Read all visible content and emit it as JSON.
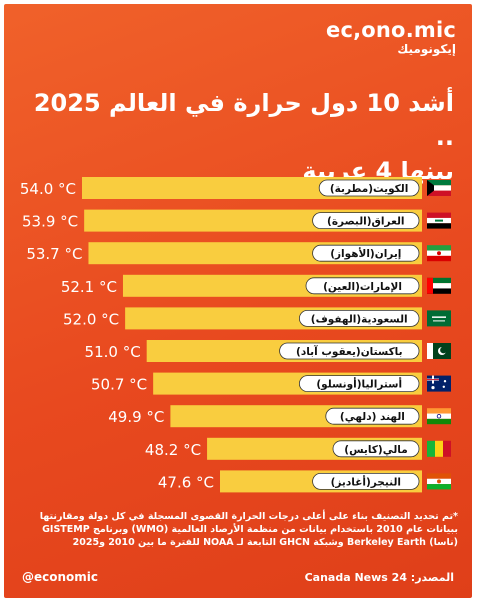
{
  "brand": {
    "name": "ec,ono.mic",
    "arabic": "إيكونوميك"
  },
  "title_line1": "أشد  10 دول حرارة في العالم 2025 ..",
  "title_line2": "بينها 4 عربية",
  "colors": {
    "background": "#e8491f",
    "bar": "#f9cd3f",
    "label_fill": "#ffffff"
  },
  "chart_data": {
    "type": "bar",
    "orientation": "horizontal",
    "categories": [
      "الكويت(مطربة)",
      "العراق(البصرة)",
      "إيران(الأهواز)",
      "الإمارات(العين)",
      "السعودية(الهفوف)",
      "باكستان(يعقوب آباد)",
      "أستراليا(أونسلو)",
      "الهند (دلهي)",
      "مالي(كايس)",
      "النيجر(أغاديز)"
    ],
    "flags": [
      "kuwait-flag-icon",
      "iraq-flag-icon",
      "iran-flag-icon",
      "uae-flag-icon",
      "saudi-flag-icon",
      "pakistan-flag-icon",
      "australia-flag-icon",
      "india-flag-icon",
      "mali-flag-icon",
      "niger-flag-icon"
    ],
    "values": [
      54.0,
      53.9,
      53.7,
      52.1,
      52.0,
      51.0,
      50.7,
      49.9,
      48.2,
      47.6
    ],
    "value_labels": [
      "54.0 °C",
      "53.9 °C",
      "53.7 °C",
      "52.1 °C",
      "52.0 °C",
      "51.0 °C",
      "50.7 °C",
      "49.9 °C",
      "48.2 °C",
      "47.6 °C"
    ],
    "xlabel": "",
    "ylabel": "",
    "grid": false,
    "legend": "none"
  },
  "footnote": "*تم تحديد التصنيف بناء على أعلى درجات الحرارة القصوى المسجلة في كل دولة ومقارنتها ببيانات عام 2010 باستخدام بيانات من منظمة الأرصاد العالمية (WMO) وبرنامج GISTEMP (ناسا) Berkeley Earth وشبكة GHCN التابعة لـ NOAA للفترة ما بين 2010 و2025",
  "footer": {
    "handle": "@economic",
    "source": "المصدر: Canada News 24"
  }
}
